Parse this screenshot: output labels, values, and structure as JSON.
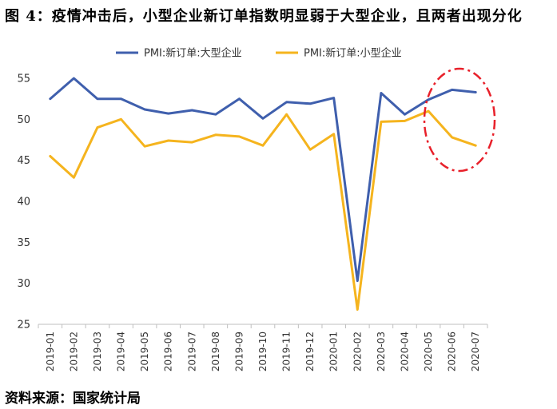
{
  "header": {
    "title": "图 4：疫情冲击后，小型企业新订单指数明显弱于大型企业，且两者出现分化"
  },
  "footer": {
    "source": "资料来源：国家统计局"
  },
  "colors": {
    "large": "#3F5FAD",
    "small": "#F5B41E",
    "highlight": "#E8202A",
    "axis": "#BFBFBF"
  },
  "chart_data": {
    "type": "line",
    "title": "",
    "xlabel": "",
    "ylabel": "",
    "ylim": [
      25,
      55
    ],
    "yticks": [
      25,
      30,
      35,
      40,
      45,
      50,
      55
    ],
    "grid": false,
    "legend_position": "top-center",
    "categories": [
      "2019-01",
      "2019-02",
      "2019-03",
      "2019-04",
      "2019-05",
      "2019-06",
      "2019-07",
      "2019-08",
      "2019-09",
      "2019-10",
      "2019-11",
      "2019-12",
      "2020-01",
      "2020-02",
      "2020-03",
      "2020-04",
      "2020-05",
      "2020-06",
      "2020-07"
    ],
    "series": [
      {
        "name": "PMI:新订单:大型企业",
        "color": "#3F5FAD",
        "values": [
          52.5,
          55.0,
          52.5,
          52.5,
          51.2,
          50.7,
          51.1,
          50.6,
          52.5,
          50.1,
          52.1,
          51.9,
          52.6,
          30.3,
          53.2,
          50.6,
          52.4,
          53.6,
          53.3
        ]
      },
      {
        "name": "PMI:新订单:小型企业",
        "color": "#F5B41E",
        "values": [
          45.5,
          42.9,
          49.0,
          50.0,
          46.7,
          47.4,
          47.2,
          48.1,
          47.9,
          46.8,
          50.6,
          46.3,
          48.2,
          26.8,
          49.7,
          49.8,
          51.0,
          47.8,
          46.8
        ]
      }
    ]
  }
}
